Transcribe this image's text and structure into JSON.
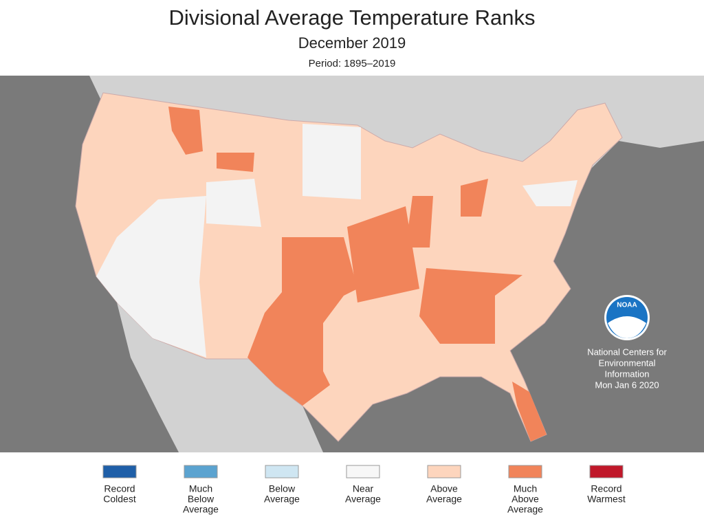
{
  "header": {
    "title": "Divisional Average Temperature Ranks",
    "subtitle": "December 2019",
    "period": "Period: 1895–2019"
  },
  "credit": {
    "lines": [
      "National Centers for",
      "Environmental",
      "Information",
      "Mon Jan  6 2020"
    ],
    "logo": "NOAA"
  },
  "legend": [
    {
      "label_lines": [
        "Record",
        "Coldest"
      ],
      "color": "#1f5fa8"
    },
    {
      "label_lines": [
        "Much",
        "Below",
        "Average"
      ],
      "color": "#5ba3d0"
    },
    {
      "label_lines": [
        "Below",
        "Average"
      ],
      "color": "#cfe6f2"
    },
    {
      "label_lines": [
        "Near",
        "Average"
      ],
      "color": "#f7f7f7"
    },
    {
      "label_lines": [
        "Above",
        "Average"
      ],
      "color": "#fdd5bd"
    },
    {
      "label_lines": [
        "Much",
        "Above",
        "Average"
      ],
      "color": "#f1845a"
    },
    {
      "label_lines": [
        "Record",
        "Warmest"
      ],
      "color": "#c0182a"
    }
  ]
}
